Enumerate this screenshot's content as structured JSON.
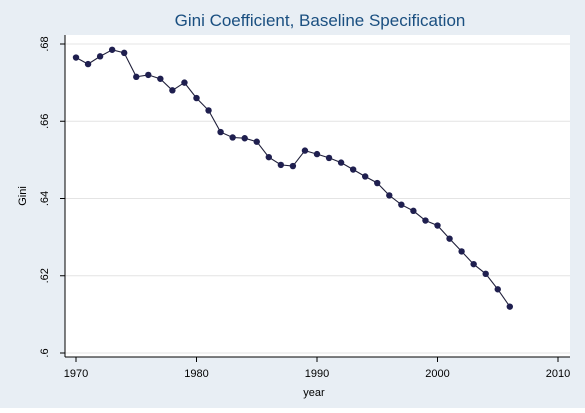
{
  "chart_data": {
    "type": "line",
    "title": "Gini Coefficient, Baseline Specification",
    "xlabel": "year",
    "ylabel": "Gini",
    "xlim": [
      1970,
      2010
    ],
    "ylim": [
      0.6,
      0.68
    ],
    "x_ticks": [
      1970,
      1980,
      1990,
      2000,
      2010
    ],
    "x_tick_labels": [
      "1970",
      "1980",
      "1990",
      "2000",
      "2010"
    ],
    "y_ticks": [
      0.6,
      0.62,
      0.64,
      0.66,
      0.68
    ],
    "y_tick_labels": [
      ".6",
      ".62",
      ".64",
      ".66",
      ".68"
    ],
    "grid": true,
    "colors": {
      "line": "#1f1f3a",
      "marker": "#1f1f4f",
      "grid": "#e4e4e4",
      "title": "#1a4f80",
      "frame_bg": "#e8eef4",
      "plot_bg": "#ffffff"
    },
    "series": [
      {
        "x": [
          1970,
          1971,
          1972,
          1973,
          1974,
          1975,
          1976,
          1977,
          1978,
          1979,
          1980,
          1981,
          1982,
          1983,
          1984,
          1985,
          1986,
          1987,
          1988,
          1989,
          1990,
          1991,
          1992,
          1993,
          1994,
          1995,
          1996,
          1997,
          1998,
          1999,
          2000,
          2001,
          2002,
          2003,
          2004,
          2005,
          2006
        ],
        "y": [
          0.6765,
          0.6748,
          0.6768,
          0.6785,
          0.6777,
          0.6715,
          0.672,
          0.671,
          0.668,
          0.67,
          0.666,
          0.6628,
          0.6572,
          0.6558,
          0.6556,
          0.6547,
          0.6507,
          0.6487,
          0.6484,
          0.6524,
          0.6515,
          0.6505,
          0.6493,
          0.6475,
          0.6457,
          0.644,
          0.6408,
          0.6384,
          0.6368,
          0.6343,
          0.633,
          0.6296,
          0.6263,
          0.623,
          0.6205,
          0.6165,
          0.612
        ]
      }
    ]
  }
}
